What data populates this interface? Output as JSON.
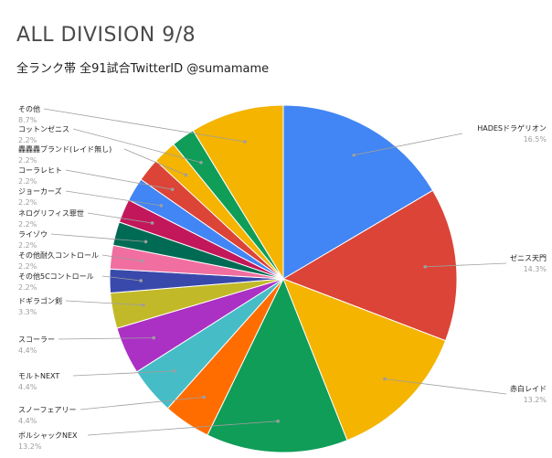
{
  "chart_data": {
    "type": "pie",
    "title": "ALL DIVISION 9/8",
    "subtitle": "全ランク帯 全91試合TwitterID @sumamame",
    "slices": [
      {
        "name": "HADESドラゲリオン",
        "value": 16.5,
        "pct": "16.5%",
        "color": "#4285f4",
        "side": "right"
      },
      {
        "name": "ゼニス天門",
        "value": 14.3,
        "pct": "14.3%",
        "color": "#db4437",
        "side": "right"
      },
      {
        "name": "赤白レイド",
        "value": 13.2,
        "pct": "13.2%",
        "color": "#f4b400",
        "side": "right"
      },
      {
        "name": "ボルシャックNEX",
        "value": 13.2,
        "pct": "13.2%",
        "color": "#0f9d58",
        "side": "left"
      },
      {
        "name": "スノーフェアリー",
        "value": 4.4,
        "pct": "4.4%",
        "color": "#ff6d00",
        "side": "left"
      },
      {
        "name": "モルトNEXT",
        "value": 4.4,
        "pct": "4.4%",
        "color": "#46bdc6",
        "side": "left"
      },
      {
        "name": "スコーラー",
        "value": 4.4,
        "pct": "4.4%",
        "color": "#ab30c4",
        "side": "left"
      },
      {
        "name": "ドギラゴン剣",
        "value": 3.3,
        "pct": "3.3%",
        "color": "#c2b928",
        "side": "left"
      },
      {
        "name": "その他5Cコントロール",
        "value": 2.2,
        "pct": "2.2%",
        "color": "#3949ab",
        "side": "left"
      },
      {
        "name": "その他耐久コントロール",
        "value": 2.2,
        "pct": "2.2%",
        "color": "#f06fa0",
        "side": "left"
      },
      {
        "name": "ライゾウ",
        "value": 2.2,
        "pct": "2.2%",
        "color": "#006b54",
        "side": "left"
      },
      {
        "name": "ネログリフィス罪世",
        "value": 2.2,
        "pct": "2.2%",
        "color": "#c2185b",
        "side": "left"
      },
      {
        "name": "ジョーカーズ",
        "value": 2.2,
        "pct": "2.2%",
        "color": "#4285f4",
        "side": "left"
      },
      {
        "name": "コーラレヒト",
        "value": 2.2,
        "pct": "2.2%",
        "color": "#db4437",
        "side": "left"
      },
      {
        "name": "轟轟轟ブランド(レイド無し)",
        "value": 2.2,
        "pct": "2.2%",
        "color": "#f4b400",
        "side": "left"
      },
      {
        "name": "コットンゼニス",
        "value": 2.2,
        "pct": "2.2%",
        "color": "#0f9d58",
        "side": "left"
      },
      {
        "name": "その他",
        "value": 8.7,
        "pct": "8.7%",
        "color": "#f4b400",
        "side": "left"
      }
    ]
  }
}
